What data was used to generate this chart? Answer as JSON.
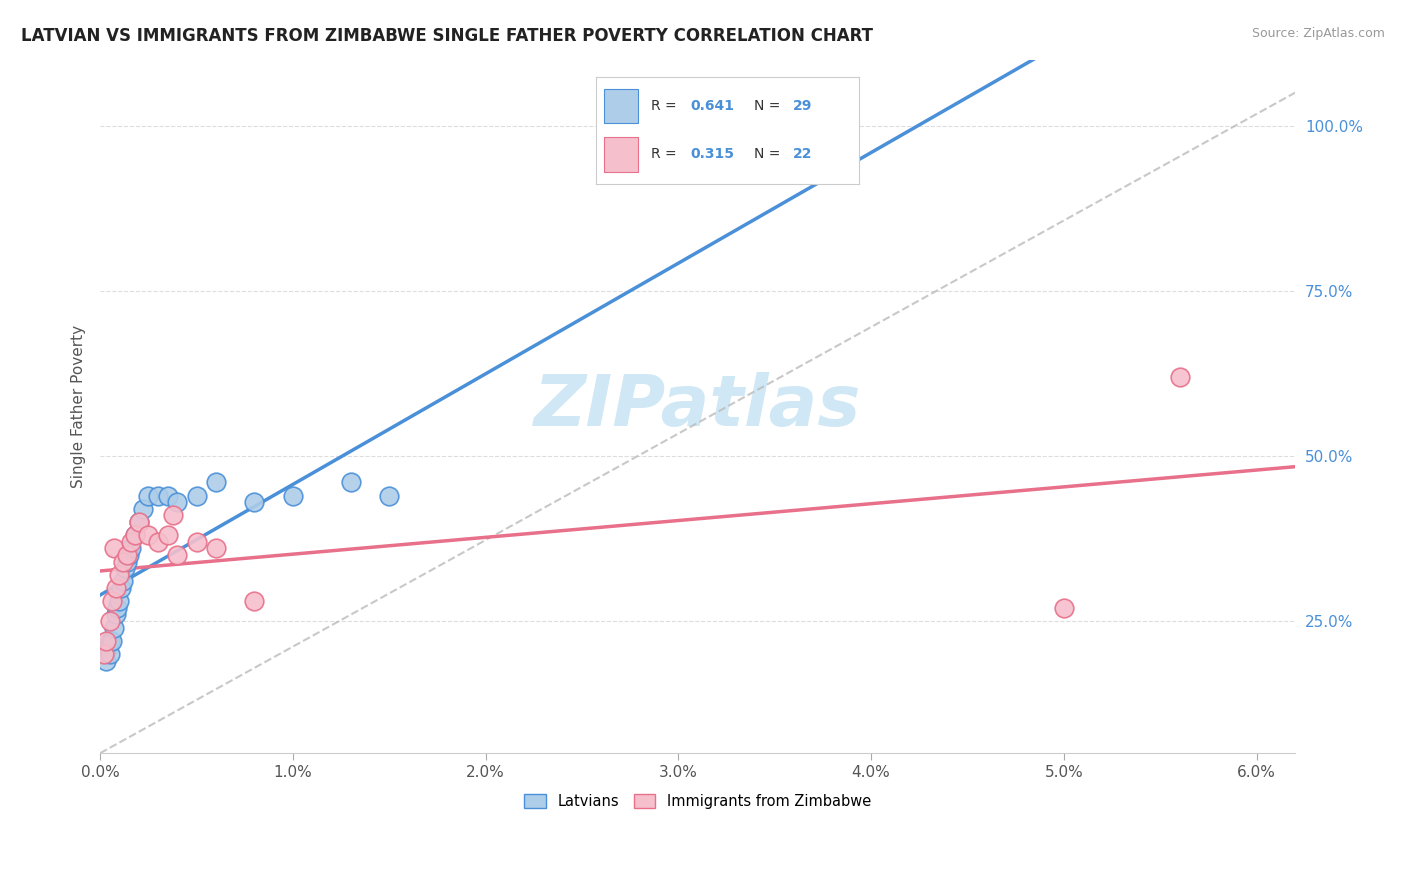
{
  "title": "LATVIAN VS IMMIGRANTS FROM ZIMBABWE SINGLE FATHER POVERTY CORRELATION CHART",
  "source": "Source: ZipAtlas.com",
  "ylabel": "Single Father Poverty",
  "legend_latvians": "Latvians",
  "legend_zimbabwe": "Immigrants from Zimbabwe",
  "latvian_R": 0.641,
  "latvian_N": 29,
  "zimbabwe_R": 0.315,
  "zimbabwe_N": 22,
  "latvian_color": "#aecde8",
  "latvian_line_color": "#4a90d9",
  "zimbabwe_color": "#f5bfcc",
  "zimbabwe_line_color": "#e8708a",
  "watermark_color": "#d0e8f5",
  "bg_color": "#ffffff",
  "latvian_x": [
    0.0002,
    0.0003,
    0.0004,
    0.0005,
    0.0005,
    0.0006,
    0.0007,
    0.0008,
    0.0009,
    0.001,
    0.0011,
    0.0012,
    0.0013,
    0.0014,
    0.0015,
    0.0016,
    0.0018,
    0.002,
    0.0022,
    0.0025,
    0.003,
    0.0035,
    0.004,
    0.005,
    0.006,
    0.008,
    0.01,
    0.013,
    0.015
  ],
  "latvian_y": [
    0.2,
    0.19,
    0.21,
    0.2,
    0.22,
    0.22,
    0.24,
    0.26,
    0.27,
    0.28,
    0.3,
    0.31,
    0.33,
    0.34,
    0.35,
    0.36,
    0.38,
    0.4,
    0.42,
    0.44,
    0.44,
    0.44,
    0.43,
    0.44,
    0.46,
    0.43,
    0.44,
    0.46,
    0.44
  ],
  "zimbabwe_x": [
    0.0002,
    0.0003,
    0.0005,
    0.0006,
    0.0007,
    0.0008,
    0.001,
    0.0012,
    0.0014,
    0.0016,
    0.0018,
    0.002,
    0.0025,
    0.003,
    0.0035,
    0.0038,
    0.004,
    0.005,
    0.006,
    0.008,
    0.05,
    0.056
  ],
  "zimbabwe_y": [
    0.2,
    0.22,
    0.25,
    0.28,
    0.36,
    0.3,
    0.32,
    0.34,
    0.35,
    0.37,
    0.38,
    0.4,
    0.38,
    0.37,
    0.38,
    0.41,
    0.35,
    0.37,
    0.36,
    0.28,
    0.27,
    0.62
  ],
  "xlim": [
    0.0,
    0.062
  ],
  "ylim": [
    0.05,
    1.1
  ],
  "ytick_vals": [
    0.25,
    0.5,
    0.75,
    1.0
  ],
  "ytick_labels": [
    "25.0%",
    "50.0%",
    "75.0%",
    "100.0%"
  ],
  "xtick_vals": [
    0.0,
    0.01,
    0.02,
    0.03,
    0.04,
    0.05,
    0.06
  ],
  "xtick_labels": [
    "0.0%",
    "1.0%",
    "2.0%",
    "3.0%",
    "4.0%",
    "5.0%",
    "6.0%"
  ]
}
